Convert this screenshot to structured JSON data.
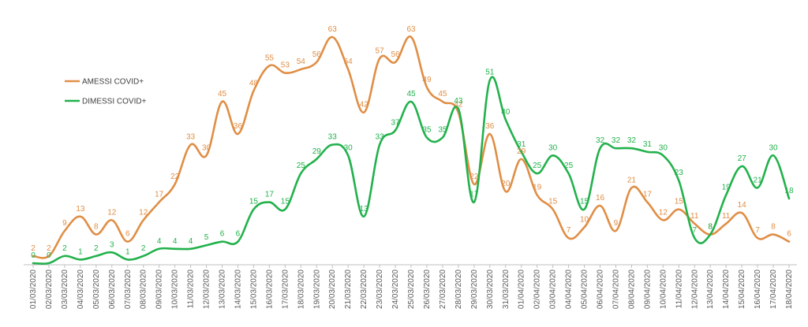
{
  "chart_data": {
    "type": "line",
    "title": "",
    "xlabel": "",
    "ylabel": "",
    "ylim": [
      0,
      66
    ],
    "grid": false,
    "legend_position": "left",
    "categories": [
      "01/03/2020",
      "02/03/2020",
      "03/03/2020",
      "04/03/2020",
      "05/03/2020",
      "06/03/2020",
      "07/03/2020",
      "08/03/2020",
      "09/03/2020",
      "10/03/2020",
      "11/03/2020",
      "12/03/2020",
      "13/03/2020",
      "14/03/2020",
      "15/03/2020",
      "16/03/2020",
      "17/03/2020",
      "18/03/2020",
      "19/03/2020",
      "20/03/2020",
      "21/03/2020",
      "22/03/2020",
      "23/03/2020",
      "24/03/2020",
      "25/03/2020",
      "26/03/2020",
      "27/03/2020",
      "28/03/2020",
      "29/03/2020",
      "30/03/2020",
      "31/03/2020",
      "01/04/2020",
      "02/04/2020",
      "03/04/2020",
      "04/04/2020",
      "05/04/2020",
      "06/04/2020",
      "07/04/2020",
      "08/04/2020",
      "09/04/2020",
      "10/04/2020",
      "11/04/2020",
      "12/04/2020",
      "13/04/2020",
      "14/04/2020",
      "15/04/2020",
      "16/04/2020",
      "17/04/2020",
      "18/04/2020"
    ],
    "series": [
      {
        "name": "AMESSI COVID+",
        "color": "#E08E45",
        "values": [
          2,
          2,
          9,
          13,
          8,
          12,
          6,
          12,
          17,
          22,
          33,
          30,
          45,
          36,
          48,
          55,
          53,
          54,
          56,
          63,
          54,
          42,
          57,
          56,
          63,
          49,
          45,
          42,
          22,
          36,
          20,
          29,
          19,
          15,
          7,
          10,
          16,
          9,
          21,
          17,
          12,
          15,
          11,
          8,
          11,
          14,
          7,
          8,
          6
        ]
      },
      {
        "name": "DIMESSI COVID+",
        "color": "#22B14C",
        "values": [
          0,
          0,
          2,
          1,
          2,
          3,
          1,
          2,
          4,
          4,
          4,
          5,
          6,
          6,
          15,
          17,
          15,
          25,
          29,
          33,
          30,
          13,
          33,
          37,
          45,
          35,
          35,
          43,
          17,
          51,
          40,
          31,
          25,
          30,
          25,
          15,
          32,
          32,
          32,
          31,
          30,
          23,
          7,
          8,
          19,
          27,
          21,
          30,
          18
        ]
      }
    ]
  }
}
